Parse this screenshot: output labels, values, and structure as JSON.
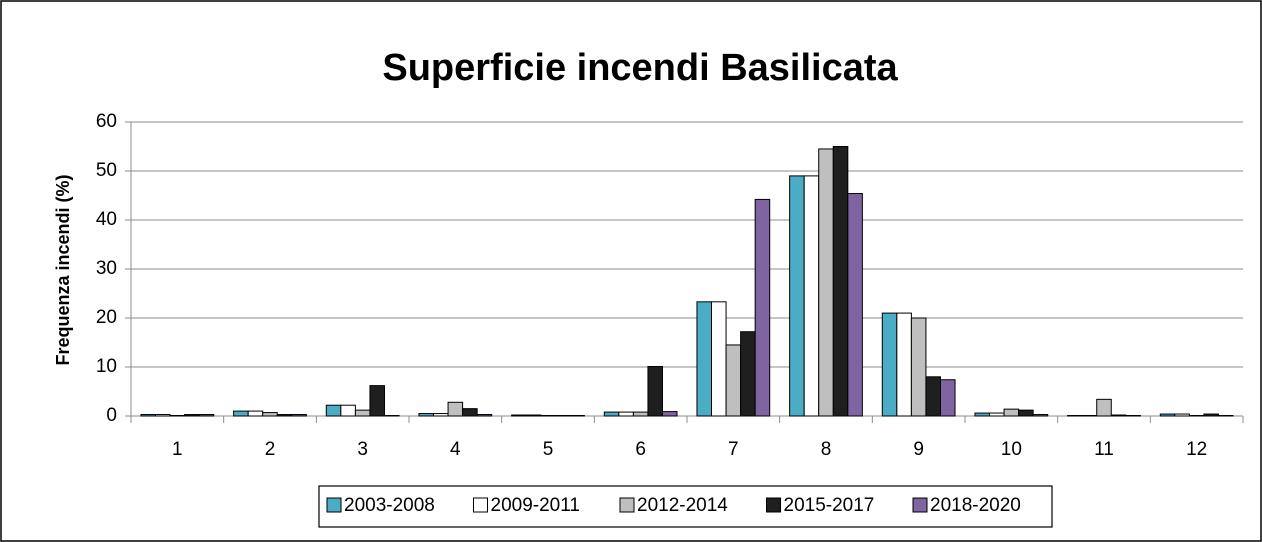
{
  "chart_data": {
    "type": "bar",
    "title": "Superficie incendi Basilicata",
    "y_label": "Frequenza incendi (%)",
    "categories": [
      "1",
      "2",
      "3",
      "4",
      "5",
      "6",
      "7",
      "8",
      "9",
      "10",
      "11",
      "12"
    ],
    "series": [
      {
        "name": "2003-2008",
        "color": "#4bacc6",
        "values": [
          0.3,
          1,
          2.2,
          0.5,
          0.2,
          0.8,
          23.3,
          49,
          21,
          0.6,
          0.1,
          0.4
        ]
      },
      {
        "name": "2009-2011",
        "color": "#ffffff",
        "values": [
          0.3,
          1,
          2.2,
          0.5,
          0.2,
          0.8,
          23.3,
          49,
          21,
          0.6,
          0.1,
          0.4
        ]
      },
      {
        "name": "2012-2014",
        "color": "#bfbfbf",
        "values": [
          0.1,
          0.7,
          1.2,
          2.8,
          0.1,
          0.8,
          14.5,
          54.5,
          20,
          1.4,
          3.4,
          0.1
        ]
      },
      {
        "name": "2015-2017",
        "color": "#1f1f1f",
        "values": [
          0.3,
          0.3,
          6.2,
          1.5,
          0.1,
          10.1,
          17.2,
          55,
          8,
          1.2,
          0.2,
          0.4
        ]
      },
      {
        "name": "2018-2020",
        "color": "#8064a2",
        "values": [
          0.3,
          0.3,
          0.1,
          0.3,
          0.1,
          0.9,
          44.2,
          45.4,
          7.4,
          0.3,
          0.1,
          0.1
        ]
      }
    ],
    "ylim": [
      0,
      60
    ],
    "yticks": [
      0,
      10,
      20,
      30,
      40,
      50,
      60
    ],
    "grid": true,
    "legend": "bottom"
  }
}
